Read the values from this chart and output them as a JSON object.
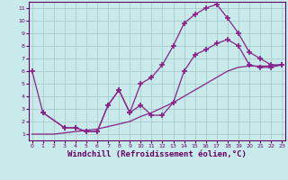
{
  "bg_color": "#c8eaea",
  "grid_color": "#a8cccc",
  "line_color": "#882288",
  "marker": "+",
  "marker_size": 5,
  "marker_lw": 1.2,
  "linewidth": 0.9,
  "xlabel": "Windchill (Refroidissement éolien,°C)",
  "xlabel_fontsize": 6.5,
  "ytick_vals": [
    1,
    2,
    3,
    4,
    5,
    6,
    7,
    8,
    9,
    10,
    11
  ],
  "xtick_vals": [
    0,
    1,
    2,
    3,
    4,
    5,
    6,
    7,
    8,
    9,
    10,
    11,
    12,
    13,
    14,
    15,
    16,
    17,
    18,
    19,
    20,
    21,
    22,
    23
  ],
  "xlim": [
    -0.3,
    23.3
  ],
  "ylim": [
    0.5,
    11.5
  ],
  "line1_x": [
    0,
    1,
    3,
    4,
    5,
    6,
    7,
    8,
    9,
    10,
    11,
    12,
    13,
    14,
    15,
    16,
    17,
    18,
    19,
    20,
    21,
    22,
    23
  ],
  "line1_y": [
    6.0,
    2.7,
    1.5,
    1.5,
    1.2,
    1.2,
    3.3,
    4.5,
    2.7,
    3.3,
    2.5,
    2.5,
    3.5,
    6.0,
    7.3,
    7.7,
    8.2,
    8.5,
    8.0,
    6.5,
    6.3,
    6.3,
    6.5
  ],
  "line2_x": [
    1,
    3,
    4,
    5,
    6,
    7,
    8,
    9,
    10,
    11,
    12,
    13,
    14,
    15,
    16,
    17,
    18,
    19,
    20,
    21,
    22,
    23
  ],
  "line2_y": [
    2.7,
    1.5,
    1.5,
    1.2,
    1.2,
    3.3,
    4.5,
    2.7,
    5.0,
    5.5,
    6.5,
    8.0,
    9.8,
    10.5,
    11.0,
    11.3,
    10.2,
    9.0,
    7.5,
    7.0,
    6.5,
    6.5
  ],
  "line3_x": [
    0,
    1,
    2,
    3,
    4,
    5,
    6,
    7,
    8,
    9,
    10,
    11,
    12,
    13,
    14,
    15,
    16,
    17,
    18,
    19,
    20,
    21,
    22,
    23
  ],
  "line3_y": [
    1.0,
    1.0,
    1.0,
    1.1,
    1.2,
    1.3,
    1.4,
    1.6,
    1.8,
    2.0,
    2.4,
    2.7,
    3.1,
    3.5,
    4.0,
    4.5,
    5.0,
    5.5,
    6.0,
    6.3,
    6.4,
    6.4,
    6.4,
    6.5
  ]
}
